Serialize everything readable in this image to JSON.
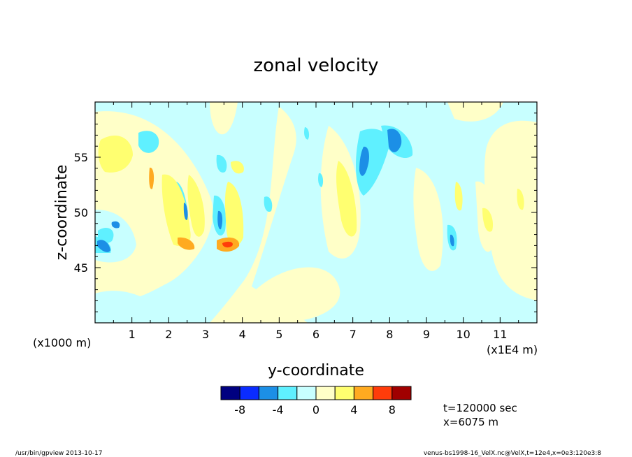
{
  "chart_data": {
    "type": "heatmap",
    "title": "zonal velocity",
    "xlabel": "y-coordinate",
    "ylabel": "z-coordinate",
    "x_unit_note": "(x1E4 m)",
    "y_unit_note": "(x1000 m)",
    "xlim": [
      0,
      12
    ],
    "ylim": [
      40,
      60
    ],
    "x_ticks": [
      1,
      2,
      3,
      4,
      5,
      6,
      7,
      8,
      9,
      10,
      11
    ],
    "y_ticks": [
      45,
      50,
      55
    ],
    "colorbar": {
      "colors": [
        "#000080",
        "#0a2cff",
        "#1c8fe6",
        "#5ff0ff",
        "#c8ffff",
        "#ffffc8",
        "#ffff70",
        "#ffaa20",
        "#ff3c0a",
        "#a00000"
      ],
      "tick_labels": [
        "-8",
        "-4",
        "0",
        "4",
        "8"
      ],
      "levels": [
        -10,
        -8,
        -6,
        -4,
        -2,
        0,
        2,
        4,
        6,
        8,
        10
      ]
    },
    "annotations": [
      "t=120000 sec",
      "x=6075 m"
    ]
  },
  "footer": {
    "left": "/usr/bin/gpview   2013-10-17",
    "right": "venus-bs1998-16_VelX.nc@VelX,t=12e4,x=0e3:120e3:8"
  }
}
